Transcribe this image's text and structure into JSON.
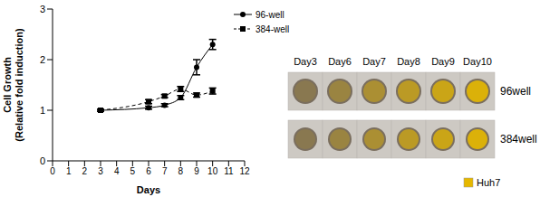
{
  "chart_data": {
    "type": "line",
    "ylabel": "Cell Growth (Relative fold induction)",
    "xlabel": "Days",
    "x": [
      3,
      6,
      7,
      8,
      9,
      10
    ],
    "xlim": [
      0,
      12
    ],
    "xticks": [
      0,
      1,
      2,
      3,
      4,
      5,
      6,
      7,
      8,
      9,
      10,
      11,
      12
    ],
    "ylim": [
      0,
      3
    ],
    "yticks": [
      0,
      1,
      2,
      3
    ],
    "series": [
      {
        "name": "96-well",
        "color": "#000000",
        "marker": "circle",
        "line_style": "solid",
        "values": [
          1.0,
          1.05,
          1.1,
          1.25,
          1.85,
          2.3
        ],
        "errors": [
          0.02,
          0.03,
          0.03,
          0.04,
          0.15,
          0.1
        ]
      },
      {
        "name": "384-well",
        "color": "#000000",
        "marker": "square",
        "line_style": "dashed",
        "values": [
          1.0,
          1.17,
          1.28,
          1.42,
          1.3,
          1.38
        ],
        "errors": [
          0.02,
          0.04,
          0.03,
          0.05,
          0.04,
          0.06
        ]
      }
    ]
  },
  "image_panel": {
    "columns": [
      "Day3",
      "Day6",
      "Day7",
      "Day8",
      "Day9",
      "Day10"
    ],
    "rows": [
      "96well",
      "384well"
    ],
    "legend": "Huh7",
    "legend_color": "#e6b800"
  }
}
